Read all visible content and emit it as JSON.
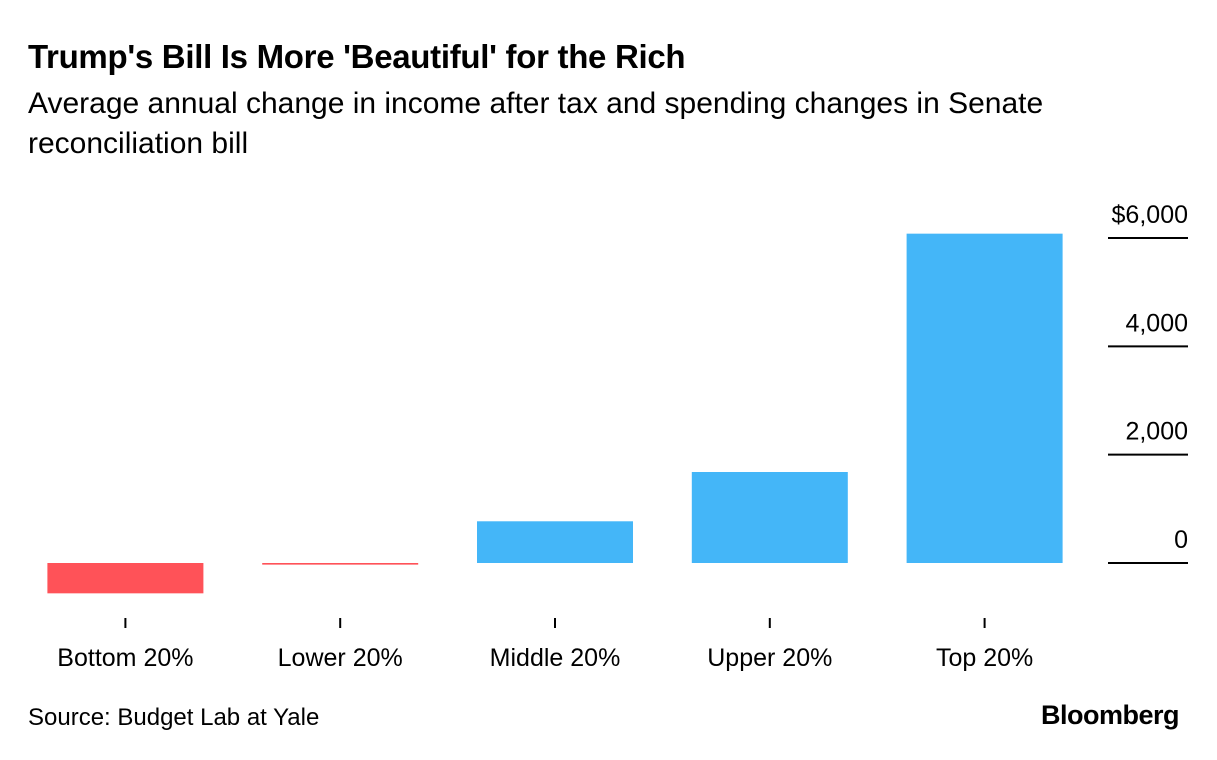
{
  "chart_data": {
    "type": "bar",
    "title": "Trump's Bill Is More 'Beautiful' for the Rich",
    "subtitle": "Average annual change in income after tax and spending changes in Senate reconciliation bill",
    "categories": [
      "Bottom 20%",
      "Lower 20%",
      "Middle 20%",
      "Upper 20%",
      "Top 20%"
    ],
    "values": [
      -560,
      -30,
      770,
      1680,
      6080
    ],
    "ylim": [
      -700,
      6500
    ],
    "yticks": [
      0,
      2000,
      4000,
      6000
    ],
    "ytick_labels": [
      "0",
      "2,000",
      "4,000",
      "$6,000"
    ],
    "yaxis_side": "right",
    "xlabel": "",
    "ylabel": "",
    "grid": false,
    "colors": {
      "positive": "#44b6f8",
      "negative": "#ff5258",
      "axis": "#000000"
    }
  },
  "source": "Source: Budget Lab at Yale",
  "brand": "Bloomberg"
}
